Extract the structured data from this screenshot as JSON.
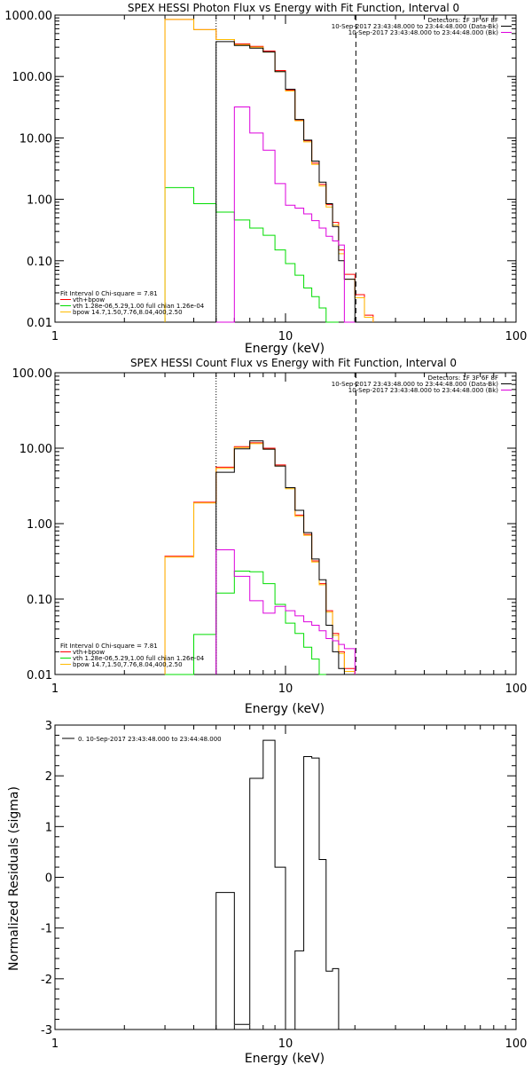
{
  "colors": {
    "data": "#000000",
    "fit_total": "#ff0000",
    "vth": "#00dd00",
    "bpow": "#ffbb00",
    "background": "#dd00dd"
  },
  "chart_data": [
    {
      "type": "line",
      "title": "SPEX HESSI Photon Flux vs Energy with Fit Function, Interval 0",
      "xlabel": "Energy (keV)",
      "ylabel": "",
      "xscale": "log",
      "yscale": "log",
      "xlim": [
        1,
        100
      ],
      "ylim": [
        0.01,
        1000
      ],
      "x_ticks": [
        "1",
        "10",
        "100"
      ],
      "y_ticks": [
        "0.01",
        "0.10",
        "1.00",
        "10.00",
        "100.00",
        "1000.00"
      ],
      "bin_edges": [
        3,
        4,
        5,
        6,
        7,
        8,
        9,
        10,
        11,
        12,
        13,
        14,
        15,
        16,
        17,
        18,
        20,
        22,
        24,
        26
      ],
      "vlines": [
        {
          "x": 5,
          "style": "dotted"
        },
        {
          "x": 20.2,
          "style": "dashed"
        }
      ],
      "legend_top": [
        "Detectors: 1F 3F 6F 8F",
        "10-Sep-2017 23:43:48.000 to 23:44:48.000 (Data-Bk)",
        "10-Sep-2017 23:43:48.000 to 23:44:48.000 (Bk)"
      ],
      "legend_top_colors": [
        "",
        "data",
        "background"
      ],
      "legend_bottom": [
        "Fit Interval 0   Chi-square = 7.81",
        "vth+bpow",
        "vth 1.28e-06,5.29,1.00  full chian 1.26e-04",
        "bpow 14.7,1.50,7.76,8.04,400,2.50"
      ],
      "legend_bottom_colors": [
        "",
        "fit_total",
        "vth",
        "bpow"
      ],
      "series": [
        {
          "name": "vth+bpow",
          "color": "fit_total",
          "start": 3,
          "values": [
            850,
            580,
            400,
            340,
            310,
            260,
            125,
            60,
            19.5,
            9.0,
            3.9,
            1.75,
            0.82,
            0.42,
            0.15,
            0.06,
            0.028,
            0.013
          ]
        },
        {
          "name": "vth",
          "color": "vth",
          "start": 3,
          "values": [
            1.55,
            0.85,
            0.62,
            0.46,
            0.34,
            0.26,
            0.15,
            0.09,
            0.058,
            0.036,
            0.026,
            0.017,
            0.01,
            0.01
          ]
        },
        {
          "name": "bpow",
          "color": "bpow",
          "start": 3,
          "values": [
            850,
            580,
            400,
            330,
            300,
            250,
            120,
            58,
            19,
            8.6,
            3.7,
            1.65,
            0.75,
            0.38,
            0.13,
            0.05,
            0.025,
            0.012
          ]
        },
        {
          "start": 5,
          "color": "data",
          "values": [
            370,
            320,
            290,
            250,
            120,
            62,
            20,
            9.2,
            4.2,
            1.9,
            0.85,
            0.36,
            0.1,
            0.05
          ]
        },
        {
          "start": 5,
          "color": "background",
          "values": [
            0.01,
            32,
            12,
            6.3,
            1.8,
            0.8,
            0.72,
            0.58,
            0.45,
            0.34,
            0.25,
            0.21,
            0.18,
            0.01
          ]
        }
      ]
    },
    {
      "type": "line",
      "title": "SPEX HESSI Count Flux vs Energy with Fit Function, Interval 0",
      "xlabel": "Energy (keV)",
      "ylabel": "",
      "xscale": "log",
      "yscale": "log",
      "xlim": [
        1,
        100
      ],
      "ylim": [
        0.01,
        100
      ],
      "x_ticks": [
        "1",
        "10",
        "100"
      ],
      "y_ticks": [
        "0.01",
        "0.10",
        "1.00",
        "10.00",
        "100.00"
      ],
      "bin_edges": [
        3,
        4,
        5,
        6,
        7,
        8,
        9,
        10,
        11,
        12,
        13,
        14,
        15,
        16,
        17,
        18,
        20
      ],
      "vlines": [
        {
          "x": 5,
          "style": "dotted"
        },
        {
          "x": 20.2,
          "style": "dashed"
        }
      ],
      "legend_top": [
        "Detectors: 1F 3F 6F 8F",
        "10-Sep-2017 23:43:48.000 to 23:44:48.000 (Data-Bk)",
        "10-Sep-2017 23:43:48.000 to 23:44:48.000 (Bk)"
      ],
      "legend_top_colors": [
        "",
        "data",
        "background"
      ],
      "legend_bottom": [
        "Fit Interval 0   Chi-square = 7.81",
        "vth+bpow",
        "vth 1.28e-06,5.29,1.00  full chian 1.26e-04",
        "bpow 14.7,1.50,7.76,8.04,400,2.50"
      ],
      "legend_bottom_colors": [
        "",
        "fit_total",
        "vth",
        "bpow"
      ],
      "series": [
        {
          "name": "vth+bpow",
          "color": "fit_total",
          "start": 3,
          "values": [
            0.37,
            1.92,
            5.6,
            10.5,
            11.8,
            10.0,
            6.0,
            3.0,
            1.3,
            0.72,
            0.32,
            0.16,
            0.07,
            0.035,
            0.02,
            0.012
          ]
        },
        {
          "name": "vth",
          "color": "vth",
          "start": 3,
          "values": [
            0.01,
            0.034,
            0.12,
            0.235,
            0.23,
            0.16,
            0.085,
            0.048,
            0.035,
            0.023,
            0.016,
            0.01
          ]
        },
        {
          "name": "bpow",
          "color": "bpow",
          "start": 3,
          "values": [
            0.36,
            1.88,
            5.4,
            10.2,
            11.5,
            9.7,
            5.8,
            2.9,
            1.25,
            0.7,
            0.31,
            0.155,
            0.067,
            0.033,
            0.019,
            0.011
          ]
        },
        {
          "start": 5,
          "color": "data",
          "values": [
            4.8,
            9.8,
            12.5,
            9.7,
            5.8,
            3.0,
            1.5,
            0.76,
            0.34,
            0.18,
            0.045,
            0.02,
            0.012,
            0.01
          ]
        },
        {
          "start": 5,
          "color": "background",
          "values": [
            0.45,
            0.2,
            0.095,
            0.065,
            0.08,
            0.07,
            0.06,
            0.05,
            0.045,
            0.038,
            0.03,
            0.028,
            0.025,
            0.022
          ]
        }
      ]
    },
    {
      "type": "line",
      "title": "",
      "xlabel": "Energy (keV)",
      "ylabel": "Normalized Residuals (sigma)",
      "xscale": "log",
      "yscale": "linear",
      "xlim": [
        1,
        100
      ],
      "ylim": [
        -3,
        3
      ],
      "x_ticks": [
        "1",
        "10",
        "100"
      ],
      "y_ticks": [
        "-3",
        "-2",
        "-1",
        "0",
        "1",
        "2",
        "3"
      ],
      "bin_edges": [
        5,
        6,
        7,
        8,
        9,
        10,
        11,
        12,
        13,
        14,
        15,
        16,
        17,
        18,
        20
      ],
      "legend_top": [
        "0. 10-Sep-2017 23:43:48.000 to 23:44:48.000"
      ],
      "legend_top_colors": [
        "data"
      ],
      "series": [
        {
          "start": 5,
          "color": "data",
          "values": [
            -0.3,
            -2.9,
            1.95,
            2.7,
            0.2,
            -3.2,
            -1.45,
            2.38,
            2.35,
            0.35,
            -1.85,
            -1.8
          ]
        }
      ]
    }
  ]
}
